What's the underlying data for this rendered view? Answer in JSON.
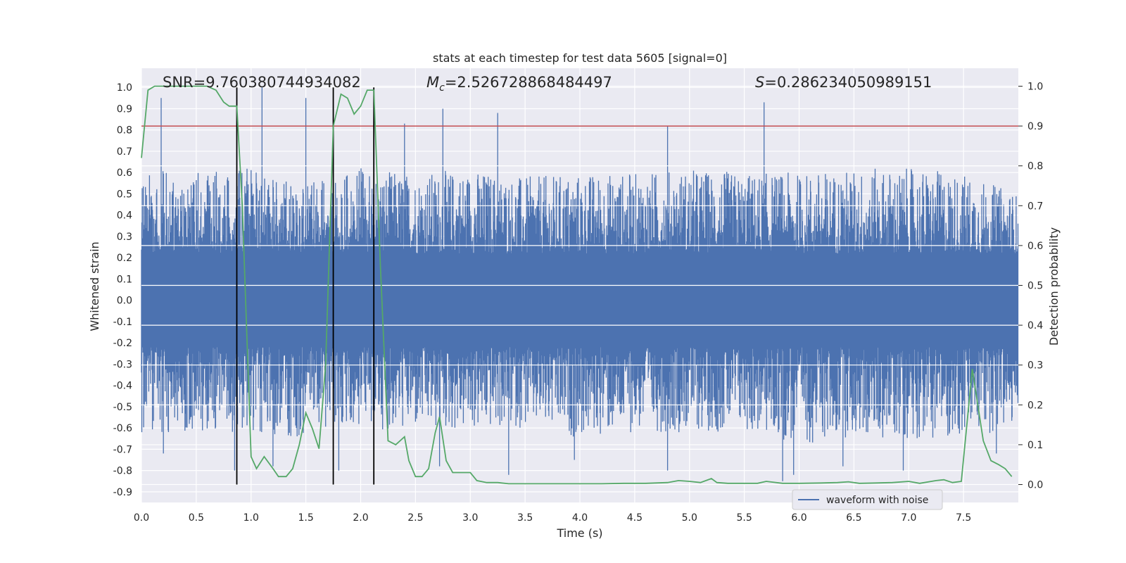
{
  "chart_data": {
    "type": "line",
    "title": "stats at each timestep for test data 5605 [signal=0]",
    "xlabel": "Time (s)",
    "ylabel": "Whitened strain",
    "ylabel_right": "Detection probability",
    "xlim": [
      0.0,
      8.0
    ],
    "ylim": [
      -0.95,
      1.09
    ],
    "ylim_right": [
      -0.045,
      1.045
    ],
    "xticks": [
      "0.0",
      "0.5",
      "1.0",
      "1.5",
      "2.0",
      "2.5",
      "3.0",
      "3.5",
      "4.0",
      "4.5",
      "5.0",
      "5.5",
      "6.0",
      "6.5",
      "7.0",
      "7.5"
    ],
    "yticks": [
      "-0.9",
      "-0.8",
      "-0.7",
      "-0.6",
      "-0.5",
      "-0.4",
      "-0.3",
      "-0.2",
      "-0.1",
      "0.0",
      "0.1",
      "0.2",
      "0.3",
      "0.4",
      "0.5",
      "0.6",
      "0.7",
      "0.8",
      "0.9",
      "1.0"
    ],
    "yticks_right": [
      "0.0",
      "0.1",
      "0.2",
      "0.3",
      "0.4",
      "0.5",
      "0.6",
      "0.7",
      "0.8",
      "0.9",
      "1.0"
    ],
    "grid": true,
    "legend": {
      "placement": "lower-right",
      "entries": [
        "waveform with noise"
      ]
    },
    "annotations": {
      "snr": "SNR=9.760380744934082",
      "mc_symbol": "M",
      "mc_sub": "c",
      "mc_value": "=2.526728868484497",
      "s_symbol": "S",
      "s_value": "=0.286234050989151"
    },
    "threshold": {
      "axis": "right",
      "value": 0.9,
      "color": "#c44e52"
    },
    "vlines": [
      0.87,
      1.75,
      2.12
    ],
    "series": [
      {
        "name": "waveform with noise",
        "axis": "left",
        "color": "#4c72b0",
        "envelope": {
          "x": [
            0.0,
            0.5,
            1.0,
            1.5,
            2.0,
            2.5,
            3.0,
            3.5,
            4.0,
            4.5,
            5.0,
            5.5,
            6.0,
            6.5,
            7.0,
            7.5,
            8.0
          ],
          "upper": [
            0.62,
            0.6,
            0.62,
            0.55,
            0.62,
            0.6,
            0.62,
            0.58,
            0.6,
            0.6,
            0.62,
            0.6,
            0.6,
            0.62,
            0.62,
            0.6,
            0.5
          ],
          "lower": [
            -0.62,
            -0.62,
            -0.62,
            -0.65,
            -0.6,
            -0.62,
            -0.62,
            -0.6,
            -0.65,
            -0.62,
            -0.62,
            -0.62,
            -0.68,
            -0.65,
            -0.65,
            -0.65,
            -0.6
          ]
        },
        "spikes": [
          [
            0.18,
            0.95
          ],
          [
            1.1,
            1.0
          ],
          [
            1.5,
            0.95
          ],
          [
            2.12,
            0.8
          ],
          [
            2.4,
            0.83
          ],
          [
            2.75,
            0.9
          ],
          [
            3.25,
            0.88
          ],
          [
            4.8,
            0.82
          ],
          [
            5.68,
            0.93
          ],
          [
            0.2,
            -0.72
          ],
          [
            0.85,
            -0.8
          ],
          [
            1.2,
            -0.78
          ],
          [
            1.8,
            -0.8
          ],
          [
            2.72,
            -0.78
          ],
          [
            3.35,
            -0.82
          ],
          [
            3.95,
            -0.75
          ],
          [
            4.8,
            -0.8
          ],
          [
            5.85,
            -0.85
          ],
          [
            5.95,
            -0.82
          ],
          [
            6.4,
            -0.78
          ],
          [
            6.95,
            -0.8
          ],
          [
            7.8,
            -0.72
          ]
        ]
      },
      {
        "name": "",
        "axis": "right",
        "color": "#55a868",
        "x": [
          0.0,
          0.06,
          0.12,
          0.2,
          0.3,
          0.4,
          0.5,
          0.6,
          0.68,
          0.75,
          0.8,
          0.87,
          0.92,
          1.0,
          1.05,
          1.12,
          1.2,
          1.25,
          1.32,
          1.38,
          1.44,
          1.5,
          1.56,
          1.62,
          1.68,
          1.75,
          1.82,
          1.88,
          1.94,
          2.0,
          2.06,
          2.12,
          2.18,
          2.25,
          2.32,
          2.4,
          2.44,
          2.5,
          2.56,
          2.62,
          2.68,
          2.72,
          2.78,
          2.84,
          2.9,
          3.0,
          3.06,
          3.15,
          3.25,
          3.35,
          3.5,
          3.65,
          3.8,
          4.0,
          4.2,
          4.4,
          4.6,
          4.8,
          4.9,
          5.0,
          5.1,
          5.2,
          5.25,
          5.35,
          5.5,
          5.62,
          5.7,
          5.85,
          6.0,
          6.2,
          6.35,
          6.45,
          6.55,
          6.7,
          6.85,
          7.0,
          7.1,
          7.25,
          7.32,
          7.4,
          7.48,
          7.58,
          7.68,
          7.75,
          7.82,
          7.88,
          7.94
        ],
        "y": [
          0.82,
          0.99,
          1.0,
          1.0,
          1.0,
          1.0,
          1.0,
          1.0,
          0.99,
          0.96,
          0.95,
          0.95,
          0.7,
          0.07,
          0.04,
          0.07,
          0.04,
          0.02,
          0.02,
          0.04,
          0.1,
          0.18,
          0.14,
          0.09,
          0.3,
          0.9,
          0.98,
          0.97,
          0.93,
          0.95,
          0.99,
          0.99,
          0.55,
          0.11,
          0.1,
          0.12,
          0.06,
          0.02,
          0.02,
          0.04,
          0.13,
          0.17,
          0.06,
          0.03,
          0.03,
          0.03,
          0.01,
          0.005,
          0.005,
          0.002,
          0.002,
          0.002,
          0.002,
          0.002,
          0.002,
          0.003,
          0.003,
          0.005,
          0.01,
          0.008,
          0.005,
          0.015,
          0.005,
          0.003,
          0.003,
          0.003,
          0.008,
          0.003,
          0.003,
          0.004,
          0.005,
          0.007,
          0.003,
          0.004,
          0.005,
          0.008,
          0.003,
          0.01,
          0.012,
          0.005,
          0.008,
          0.29,
          0.11,
          0.06,
          0.05,
          0.04,
          0.02
        ]
      }
    ]
  }
}
